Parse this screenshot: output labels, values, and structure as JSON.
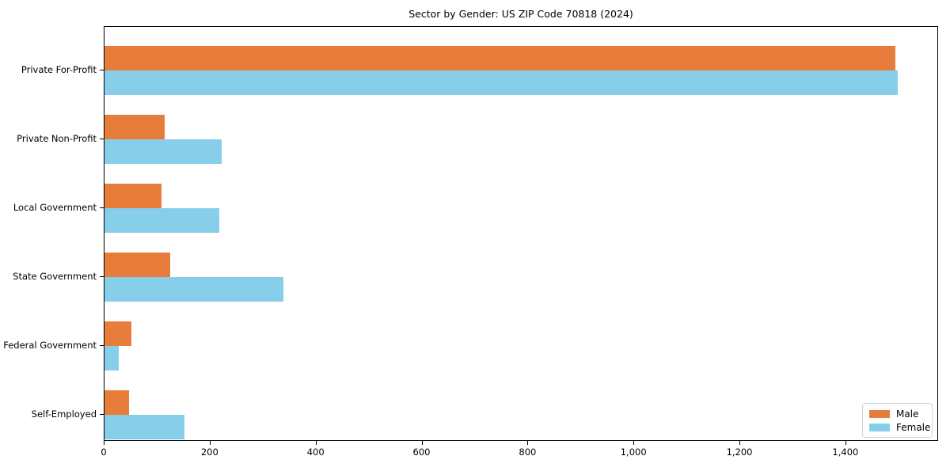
{
  "title": "Sector by Gender: US ZIP Code 70818 (2024)",
  "chart_data": {
    "type": "bar",
    "orientation": "horizontal",
    "title": "Sector by Gender: US ZIP Code 70818 (2024)",
    "categories": [
      "Private For-Profit",
      "Private Non-Profit",
      "Local Government",
      "State Government",
      "Federal Government",
      "Self-Employed"
    ],
    "series": [
      {
        "name": "Male",
        "color": "#e87d3b",
        "values": [
          1495,
          114,
          108,
          124,
          51,
          46
        ]
      },
      {
        "name": "Female",
        "color": "#87ceeb",
        "values": [
          1500,
          221,
          217,
          338,
          27,
          151
        ]
      }
    ],
    "xlabel": "",
    "ylabel": "",
    "xlim": [
      0,
      1575
    ],
    "x_ticks": [
      0,
      200,
      400,
      600,
      800,
      1000,
      1200,
      1400
    ],
    "x_tick_labels": [
      "0",
      "200",
      "400",
      "600",
      "800",
      "1,000",
      "1,200",
      "1,400"
    ],
    "grid": false,
    "legend_position": "lower right"
  },
  "legend": {
    "items": [
      {
        "label": "Male",
        "color": "#e87d3b"
      },
      {
        "label": "Female",
        "color": "#87ceeb"
      }
    ]
  }
}
